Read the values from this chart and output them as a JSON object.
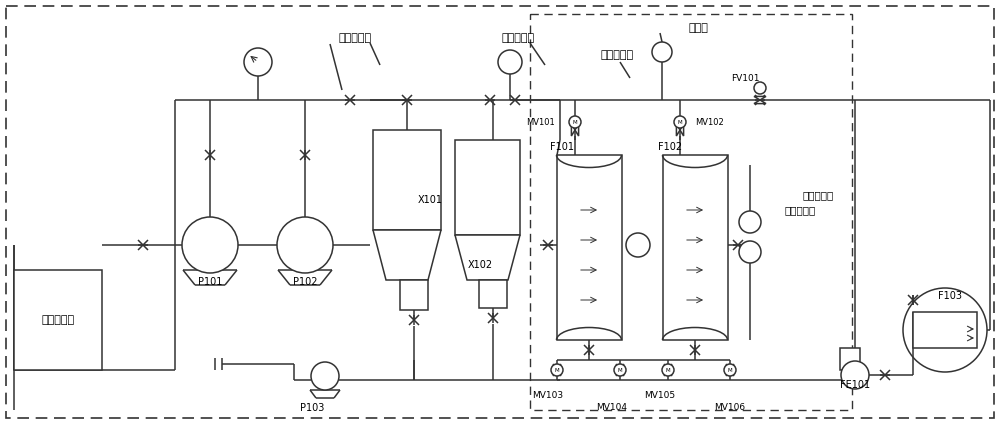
{
  "bg_color": "#ffffff",
  "lc": "#333333",
  "lw": 1.1,
  "labels": {
    "tank": "试压污水池",
    "P101": "P101",
    "P102": "P102",
    "P103": "P103",
    "X101": "X101",
    "X102": "X102",
    "F101": "F101",
    "F102": "F102",
    "F103": "F103",
    "MV101": "MV101",
    "MV102": "MV102",
    "MV103": "MV103",
    "MV104": "MV104",
    "MV105": "MV105",
    "MV106": "MV106",
    "FV101": "FV101",
    "FE101": "FE101",
    "label_serial1": "串并切换阀",
    "label_direct": "直冲控制阀",
    "label_serial2": "串并切换阀",
    "label_drain": "排水管",
    "label_pdiff": "压差变送器"
  }
}
